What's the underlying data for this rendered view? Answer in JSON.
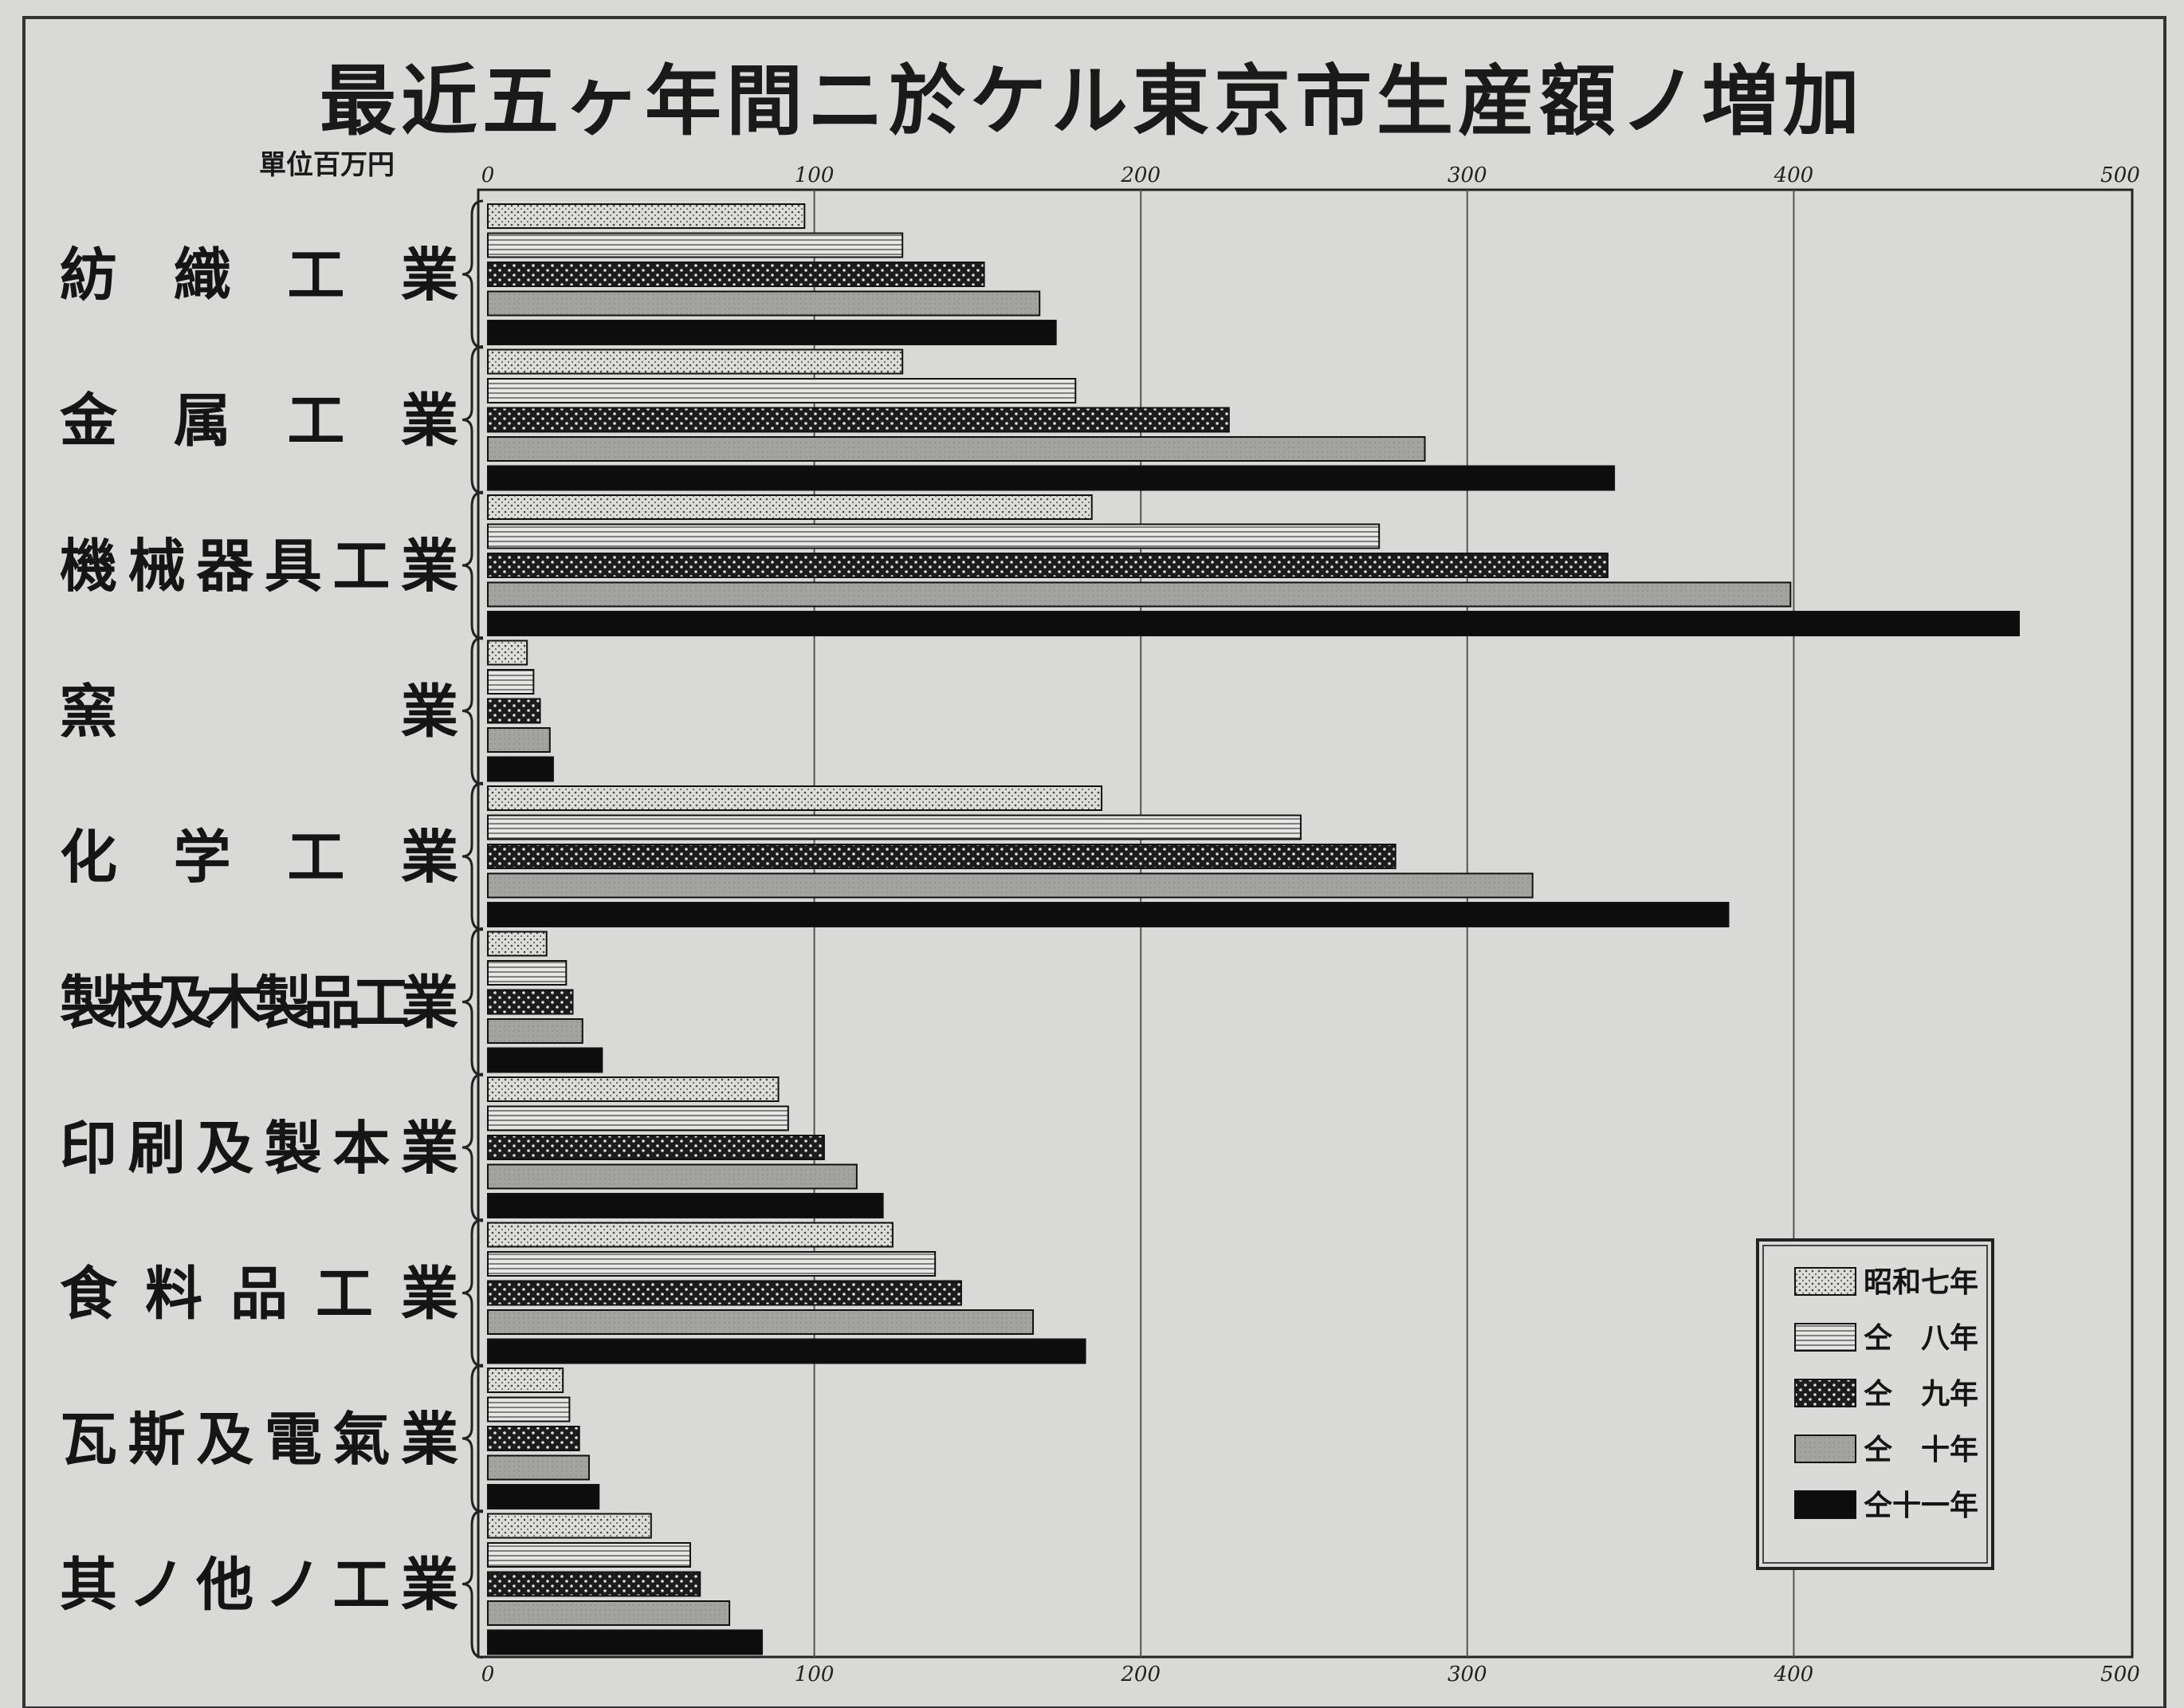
{
  "chart_data": {
    "type": "bar",
    "orientation": "horizontal",
    "title": "最近五ヶ年間ニ於ケル東京市生産額ノ増加",
    "unit_label": "單位百万円",
    "xlim": [
      0,
      500
    ],
    "ticks": [
      0,
      100,
      200,
      300,
      400,
      500
    ],
    "grid": true,
    "legend_position": "bottom-right",
    "categories": [
      "紡織工業",
      "金属工業",
      "機械器具工業",
      "窯業",
      "化学工業",
      "製枝及木製品工業",
      "印刷及製本業",
      "食料品工業",
      "瓦斯及電氣業",
      "其ノ他ノ工業"
    ],
    "series": [
      {
        "name": "昭和七年",
        "values": [
          97,
          127,
          185,
          12,
          188,
          18,
          89,
          124,
          23,
          50
        ]
      },
      {
        "name": "仝　八年",
        "values": [
          127,
          180,
          273,
          14,
          249,
          24,
          92,
          137,
          25,
          62
        ]
      },
      {
        "name": "仝　九年",
        "values": [
          152,
          227,
          343,
          16,
          278,
          26,
          103,
          145,
          28,
          65
        ]
      },
      {
        "name": "仝　十年",
        "values": [
          169,
          287,
          399,
          19,
          320,
          29,
          113,
          167,
          31,
          74
        ]
      },
      {
        "name": "仝十一年",
        "values": [
          174,
          345,
          469,
          20,
          380,
          35,
          121,
          183,
          34,
          84
        ]
      }
    ]
  },
  "colors": {
    "paper": "#d9d9d7",
    "ink": "#151515",
    "series_fills": [
      "#d8d8d6",
      "#e4e4e2",
      "#1e1e1e",
      "#a3a3a1",
      "#0d0d0d"
    ]
  }
}
